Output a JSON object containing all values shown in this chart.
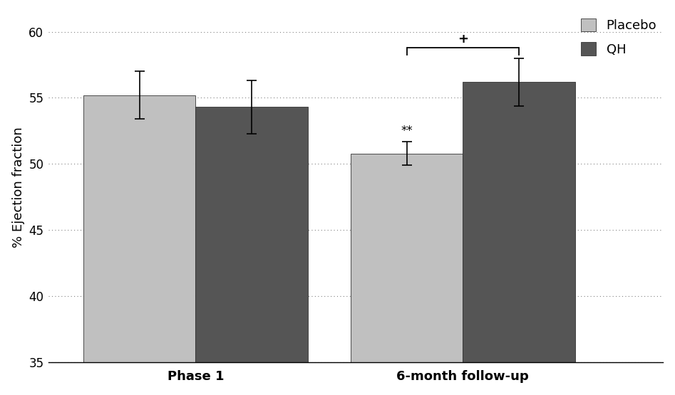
{
  "groups": [
    "Phase 1",
    "6-month follow-up"
  ],
  "placebo_values": [
    55.2,
    50.8
  ],
  "qh_values": [
    54.3,
    56.2
  ],
  "placebo_errors": [
    1.8,
    0.9
  ],
  "qh_errors": [
    2.0,
    1.8
  ],
  "placebo_color": "#c0c0c0",
  "qh_color": "#555555",
  "ylabel": "% Ejection fraction",
  "ylim": [
    35,
    61.5
  ],
  "yticks": [
    35,
    40,
    45,
    50,
    55,
    60
  ],
  "bar_width": 0.42,
  "group_positions": [
    0,
    1
  ],
  "legend_labels": [
    "Placebo",
    "QH"
  ],
  "significance_star": "**",
  "significance_plus": "+",
  "xlim": [
    -0.55,
    1.75
  ]
}
